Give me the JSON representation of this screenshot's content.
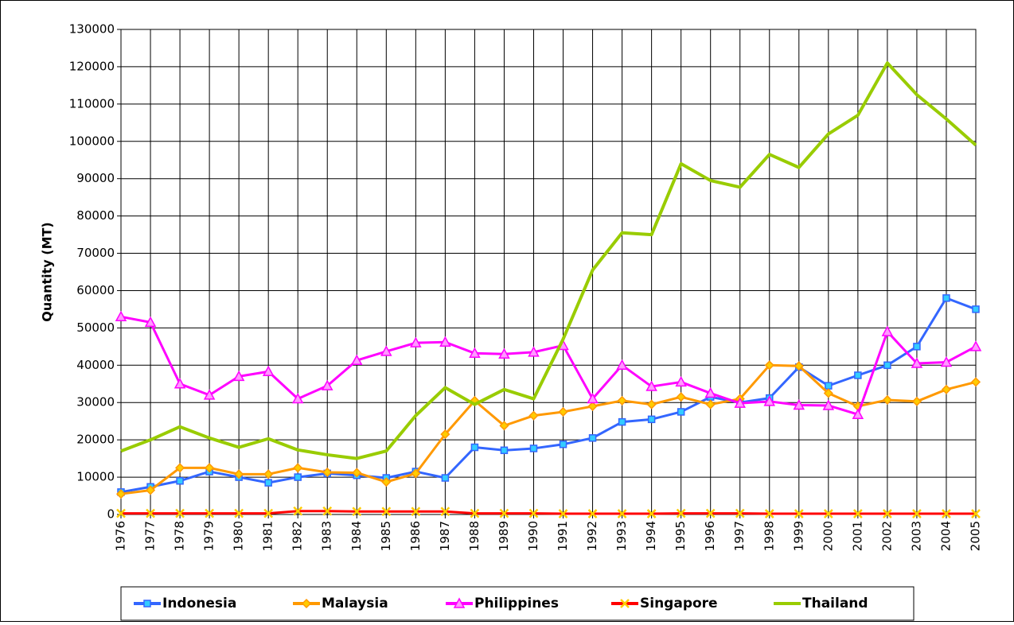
{
  "chart_data": {
    "type": "line",
    "y_label": "Quantity (MT)",
    "categories": [
      "1976",
      "1977",
      "1978",
      "1979",
      "1980",
      "1981",
      "1982",
      "1983",
      "1984",
      "1985",
      "1986",
      "1987",
      "1988",
      "1989",
      "1990",
      "1991",
      "1992",
      "1993",
      "1994",
      "1995",
      "1996",
      "1997",
      "1998",
      "1999",
      "2000",
      "2001",
      "2002",
      "2003",
      "2004",
      "2005"
    ],
    "ylim": [
      0,
      130000
    ],
    "yticks": [
      0,
      10000,
      20000,
      30000,
      40000,
      50000,
      60000,
      70000,
      80000,
      90000,
      100000,
      110000,
      120000,
      130000
    ],
    "grid": true,
    "legend": "bottom",
    "series": [
      {
        "name": "Indonesia",
        "color": "#3366ff",
        "marker": "square",
        "marker_color": "#33ccff",
        "values": [
          6000,
          7400,
          9000,
          11500,
          10000,
          8500,
          10000,
          11000,
          10500,
          9800,
          11500,
          9800,
          18000,
          17200,
          17700,
          18800,
          20500,
          24800,
          25500,
          27500,
          31500,
          30000,
          31200,
          39500,
          34500,
          37300,
          40000,
          45000,
          58000,
          55000
        ]
      },
      {
        "name": "Malaysia",
        "color": "#ff9900",
        "marker": "diamond",
        "marker_color": "#ffcc00",
        "values": [
          5500,
          6500,
          12500,
          12500,
          10800,
          10800,
          12500,
          11300,
          11200,
          8700,
          11000,
          21500,
          30500,
          23800,
          26500,
          27500,
          29000,
          30500,
          29500,
          31500,
          29500,
          31000,
          40000,
          39800,
          32500,
          29000,
          30700,
          30300,
          33500,
          35500
        ]
      },
      {
        "name": "Philippines",
        "color": "#ff00ff",
        "marker": "triangle",
        "marker_color": "#ff99ff",
        "values": [
          53000,
          51500,
          35000,
          32000,
          37000,
          38300,
          31000,
          34500,
          41300,
          43700,
          46000,
          46200,
          43200,
          43000,
          43500,
          45300,
          31000,
          40000,
          34300,
          35500,
          32500,
          29800,
          30300,
          29300,
          29200,
          26800,
          49000,
          40500,
          40800,
          45000
        ]
      },
      {
        "name": "Singapore",
        "color": "#ff0000",
        "marker": "x",
        "marker_color": "#ffcc00",
        "values": [
          300,
          300,
          300,
          300,
          300,
          300,
          900,
          900,
          800,
          800,
          800,
          800,
          300,
          300,
          300,
          200,
          200,
          200,
          200,
          300,
          300,
          300,
          200,
          200,
          200,
          200,
          200,
          200,
          200,
          200
        ]
      },
      {
        "name": "Thailand",
        "color": "#99cc00",
        "marker": "none",
        "marker_color": "#99cc00",
        "values": [
          17000,
          20000,
          23500,
          20500,
          18000,
          20300,
          17300,
          16000,
          15000,
          17000,
          26500,
          34000,
          29500,
          33500,
          31000,
          47000,
          65500,
          75500,
          75000,
          94000,
          89500,
          87700,
          96500,
          93000,
          102000,
          107000,
          121000,
          112500,
          106000,
          99000
        ]
      }
    ]
  }
}
